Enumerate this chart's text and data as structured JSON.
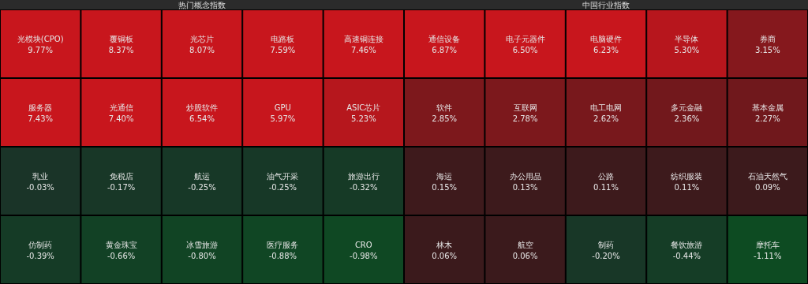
{
  "chart_data": [
    {
      "type": "other",
      "title": "热门概念指数",
      "categories": [
        "光模块(CPO)",
        "覆铜板",
        "光芯片",
        "电路板",
        "高速铜连接",
        "服务器",
        "光通信",
        "炒股软件",
        "GPU",
        "ASIC芯片",
        "乳业",
        "免税店",
        "航运",
        "油气开采",
        "旅游出行",
        "仿制药",
        "黄金珠宝",
        "冰雪旅游",
        "医疗服务",
        "CRO"
      ],
      "values": [
        9.77,
        8.37,
        8.07,
        7.59,
        7.46,
        7.43,
        7.4,
        6.54,
        5.97,
        5.23,
        -0.03,
        -0.17,
        -0.25,
        -0.25,
        -0.32,
        -0.39,
        -0.66,
        -0.8,
        -0.88,
        -0.98
      ],
      "value_labels": [
        "9.77%",
        "8.37%",
        "8.07%",
        "7.59%",
        "7.46%",
        "7.43%",
        "7.40%",
        "6.54%",
        "5.97%",
        "5.23%",
        "-0.03%",
        "-0.17%",
        "-0.25%",
        "-0.25%",
        "-0.32%",
        "-0.39%",
        "-0.66%",
        "-0.80%",
        "-0.88%",
        "-0.98%"
      ]
    },
    {
      "type": "other",
      "title": "中国行业指数",
      "categories": [
        "通信设备",
        "电子元器件",
        "电脑硬件",
        "半导体",
        "券商",
        "软件",
        "互联网",
        "电工电网",
        "多元金融",
        "基本金属",
        "海运",
        "办公用品",
        "公路",
        "纺织服装",
        "石油天然气",
        "林木",
        "航空",
        "制药",
        "餐饮旅游",
        "摩托车"
      ],
      "values": [
        6.87,
        6.5,
        6.23,
        5.3,
        3.15,
        2.85,
        2.78,
        2.62,
        2.36,
        2.27,
        0.15,
        0.13,
        0.11,
        0.11,
        0.09,
        0.06,
        0.06,
        -0.2,
        -0.44,
        -1.11
      ],
      "value_labels": [
        "6.87%",
        "6.50%",
        "6.23%",
        "5.30%",
        "3.15%",
        "2.85%",
        "2.78%",
        "2.62%",
        "2.36%",
        "2.27%",
        "0.15%",
        "0.13%",
        "0.11%",
        "0.11%",
        "0.09%",
        "0.06%",
        "0.06%",
        "-0.20%",
        "-0.44%",
        "-1.11%"
      ]
    }
  ]
}
